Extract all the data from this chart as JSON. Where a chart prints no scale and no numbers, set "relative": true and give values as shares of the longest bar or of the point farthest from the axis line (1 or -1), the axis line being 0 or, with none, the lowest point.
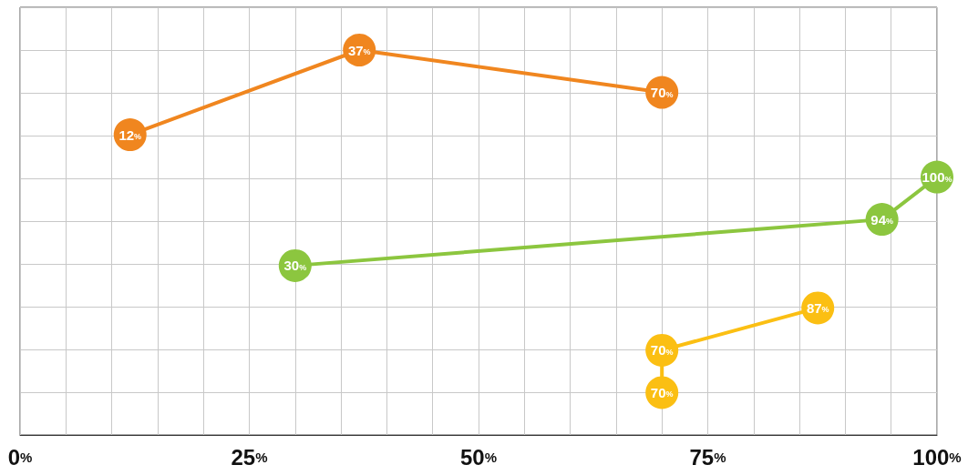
{
  "chart_data": {
    "type": "line",
    "relative": true,
    "xlim": [
      0,
      100
    ],
    "xticks": [
      {
        "value": 0,
        "label": "0%"
      },
      {
        "value": 25,
        "label": "25%"
      },
      {
        "value": 50,
        "label": "50%"
      },
      {
        "value": 75,
        "label": "75%"
      },
      {
        "value": 100,
        "label": "100%"
      }
    ],
    "grid": true,
    "marker": "circle",
    "line_style": "solid",
    "series": [
      {
        "color": "#f0861f",
        "x": [
          12,
          37,
          70
        ],
        "values": [
          0.78,
          1,
          0.89
        ]
      },
      {
        "color": "#8cc63f",
        "x": [
          30,
          94,
          100
        ],
        "values": [
          0.44,
          0.56,
          0.67
        ]
      },
      {
        "color": "#fbbf13",
        "x": [
          70,
          70,
          87
        ],
        "values": [
          0.11,
          0.22,
          0.33
        ]
      }
    ],
    "annotations": [
      {
        "text": "12%",
        "x": 12,
        "y": 0.78
      },
      {
        "text": "37%",
        "x": 37,
        "y": 1
      },
      {
        "text": "70%",
        "x": 70,
        "y": 0.89
      },
      {
        "text": "30%",
        "x": 30,
        "y": 0.44
      },
      {
        "text": "94%",
        "x": 94,
        "y": 0.56
      },
      {
        "text": "100%",
        "x": 100,
        "y": 0.67
      },
      {
        "text": "70%",
        "x": 70,
        "y": 0.11
      },
      {
        "text": "70%",
        "x": 70,
        "y": 0.22
      },
      {
        "text": "87%",
        "x": 87,
        "y": 0.33
      }
    ]
  }
}
